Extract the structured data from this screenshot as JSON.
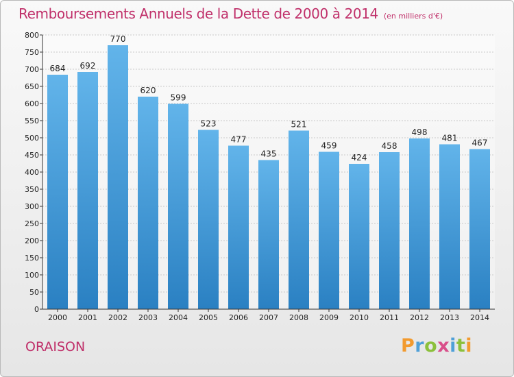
{
  "chart_data": {
    "type": "bar",
    "title": "Remboursements Annuels de la Dette de 2000 à 2014",
    "subtitle": "(en milliers d'€)",
    "categories": [
      "2000",
      "2001",
      "2002",
      "2003",
      "2004",
      "2005",
      "2006",
      "2007",
      "2008",
      "2009",
      "2010",
      "2011",
      "2012",
      "2013",
      "2014"
    ],
    "values": [
      684,
      692,
      770,
      620,
      599,
      523,
      477,
      435,
      521,
      459,
      424,
      458,
      498,
      481,
      467
    ],
    "ylim": [
      0,
      800
    ],
    "yticks": [
      0,
      50,
      100,
      150,
      200,
      250,
      300,
      350,
      400,
      450,
      500,
      550,
      600,
      650,
      700,
      750,
      800
    ],
    "xlabel": "",
    "ylabel": "",
    "grid": true
  },
  "footer": {
    "place": "ORAISON",
    "logo_letters": [
      "P",
      "r",
      "o",
      "x",
      "i",
      "t",
      "i"
    ]
  },
  "colors": {
    "title": "#c0306a",
    "bar_top": "#62b4ea",
    "bar_bottom": "#2a80c2",
    "logo": [
      "#f29a2e",
      "#4fa0d8",
      "#8cc03c",
      "#d94f8a",
      "#4fa0d8",
      "#8cc03c",
      "#f29a2e"
    ]
  }
}
